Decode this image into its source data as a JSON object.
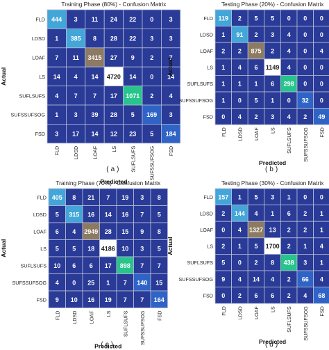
{
  "chart_data": [
    {
      "type": "heatmap",
      "title": "Training Phase (80%) - Confusion Matrix",
      "xlabel": "Predicted",
      "ylabel": "Actual",
      "caption": "(a)",
      "categories": [
        "FLD",
        "LDSD",
        "LOAF",
        "LS",
        "SUFLSUFS",
        "SUFSSUFSOG",
        "FSD"
      ],
      "values": [
        [
          444,
          3,
          11,
          24,
          22,
          0,
          3
        ],
        [
          1,
          385,
          8,
          28,
          22,
          3,
          3
        ],
        [
          7,
          11,
          3415,
          27,
          9,
          2,
          7
        ],
        [
          14,
          4,
          14,
          4720,
          14,
          0,
          14
        ],
        [
          4,
          7,
          7,
          17,
          1071,
          2,
          4
        ],
        [
          1,
          3,
          39,
          28,
          5,
          169,
          3
        ],
        [
          3,
          17,
          14,
          12,
          23,
          5,
          184
        ]
      ]
    },
    {
      "type": "heatmap",
      "title": "Testing Phase (20%) - Confusion Matrix",
      "xlabel": "Predicted",
      "ylabel": "Actual",
      "caption": "(b)",
      "categories": [
        "FLD",
        "LDSD",
        "LOAF",
        "LS",
        "SUFLSUFS",
        "SUFSSUFSOG",
        "FSD"
      ],
      "values": [
        [
          119,
          2,
          5,
          5,
          0,
          0,
          0
        ],
        [
          1,
          91,
          2,
          3,
          4,
          0,
          0
        ],
        [
          2,
          2,
          875,
          2,
          4,
          0,
          4
        ],
        [
          1,
          4,
          6,
          1149,
          4,
          0,
          0
        ],
        [
          1,
          1,
          1,
          6,
          298,
          0,
          0
        ],
        [
          1,
          0,
          5,
          1,
          0,
          32,
          0
        ],
        [
          0,
          4,
          2,
          3,
          4,
          2,
          49
        ]
      ]
    },
    {
      "type": "heatmap",
      "title": "Training Phase (70%) - Confusion Matrix",
      "xlabel": "Predicted",
      "ylabel": "Actual",
      "caption": "(c)",
      "categories": [
        "FLD",
        "LDSD",
        "LOAF",
        "LS",
        "SUFLSUFS",
        "SUFSSUFSOG",
        "FSD"
      ],
      "values": [
        [
          405,
          8,
          21,
          7,
          19,
          3,
          8
        ],
        [
          5,
          315,
          16,
          14,
          16,
          7,
          5
        ],
        [
          6,
          4,
          2949,
          28,
          15,
          9,
          8
        ],
        [
          5,
          5,
          18,
          4186,
          10,
          3,
          5
        ],
        [
          10,
          6,
          6,
          17,
          898,
          7,
          7
        ],
        [
          4,
          0,
          25,
          1,
          7,
          140,
          15
        ],
        [
          9,
          10,
          16,
          19,
          7,
          7,
          164
        ]
      ]
    },
    {
      "type": "heatmap",
      "title": "Testing Phase (30%) - Confusion Matrix",
      "xlabel": "Predicted",
      "ylabel": "Actual",
      "caption": "(d)",
      "categories": [
        "FLD",
        "LDSD",
        "LOAF",
        "LS",
        "SUFLSUFS",
        "SUFSSUFSOG",
        "FSD"
      ],
      "values": [
        [
          157,
          1,
          5,
          3,
          1,
          0,
          0
        ],
        [
          2,
          144,
          4,
          1,
          6,
          2,
          1
        ],
        [
          0,
          4,
          1327,
          13,
          2,
          2,
          1
        ],
        [
          2,
          1,
          5,
          1700,
          2,
          1,
          4
        ],
        [
          5,
          0,
          2,
          8,
          438,
          3,
          1
        ],
        [
          9,
          4,
          14,
          4,
          2,
          66,
          4
        ],
        [
          0,
          2,
          6,
          6,
          2,
          4,
          68
        ]
      ]
    }
  ],
  "colors": {
    "cell_default": "#2a3a97",
    "cell_border": "#b7bdd8",
    "diag_light": "#2f64c6",
    "diag_mid": "#42a6d8",
    "diag_brown": "#8c7a62",
    "diag_green": "#27c48c",
    "diag_white": "#ffffff"
  }
}
